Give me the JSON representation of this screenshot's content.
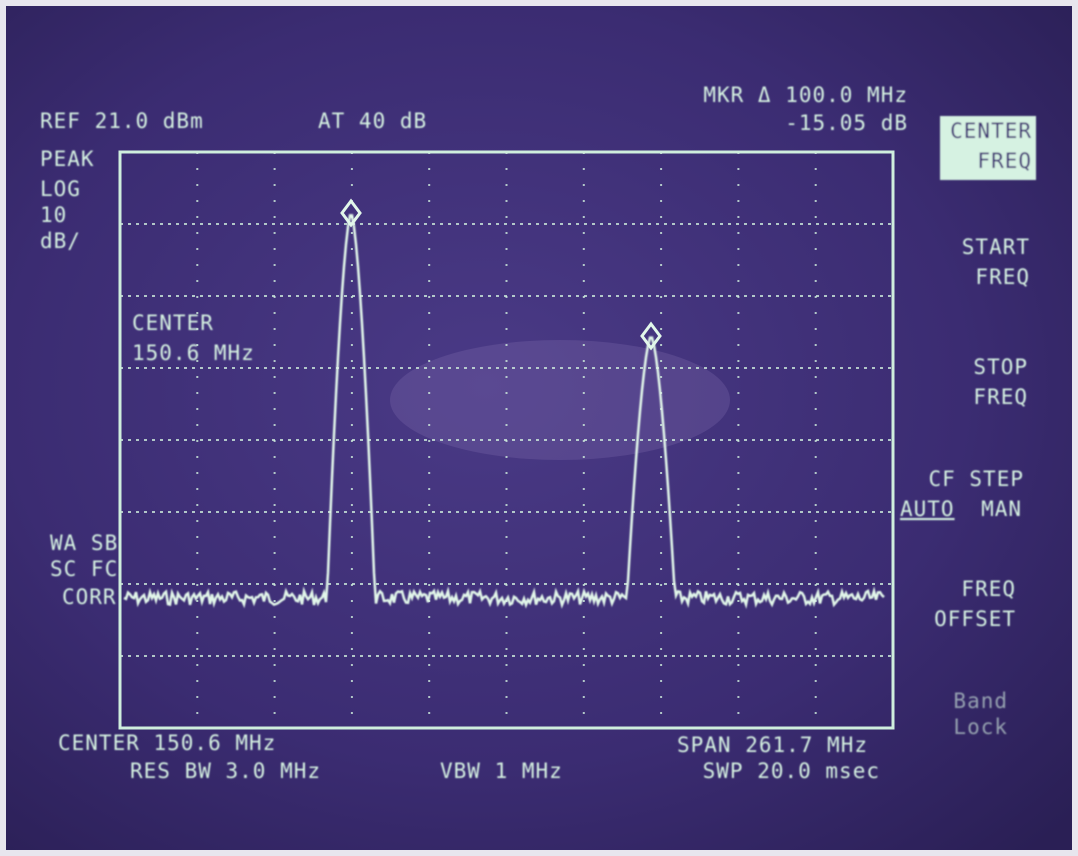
{
  "header": {
    "ref": "REF 21.0 dBm",
    "atten": "AT 40 dB",
    "marker": "MKR Δ 100.0 MHz",
    "marker_delta": "-15.05 dB"
  },
  "scale_labels": [
    "PEAK",
    "LOG",
    "10",
    "dB/"
  ],
  "center_note": [
    "CENTER",
    "150.6 MHz"
  ],
  "corr_labels": [
    "WA SB",
    "SC FC",
    "CORR"
  ],
  "footer": {
    "center": "CENTER 150.6 MHz",
    "rbw": "RES BW 3.0 MHz",
    "vbw": "VBW 1 MHz",
    "span": "SPAN 261.7 MHz",
    "sweep": "SWP 20.0 msec"
  },
  "softkeys": [
    [
      "CENTER",
      "FREQ"
    ],
    [
      "START",
      "FREQ"
    ],
    [
      "STOP",
      "FREQ"
    ],
    [
      "CF STEP",
      "AUTO",
      "MAN"
    ],
    [
      "FREQ",
      "OFFSET"
    ],
    [
      "Band",
      "Lock"
    ]
  ]
}
